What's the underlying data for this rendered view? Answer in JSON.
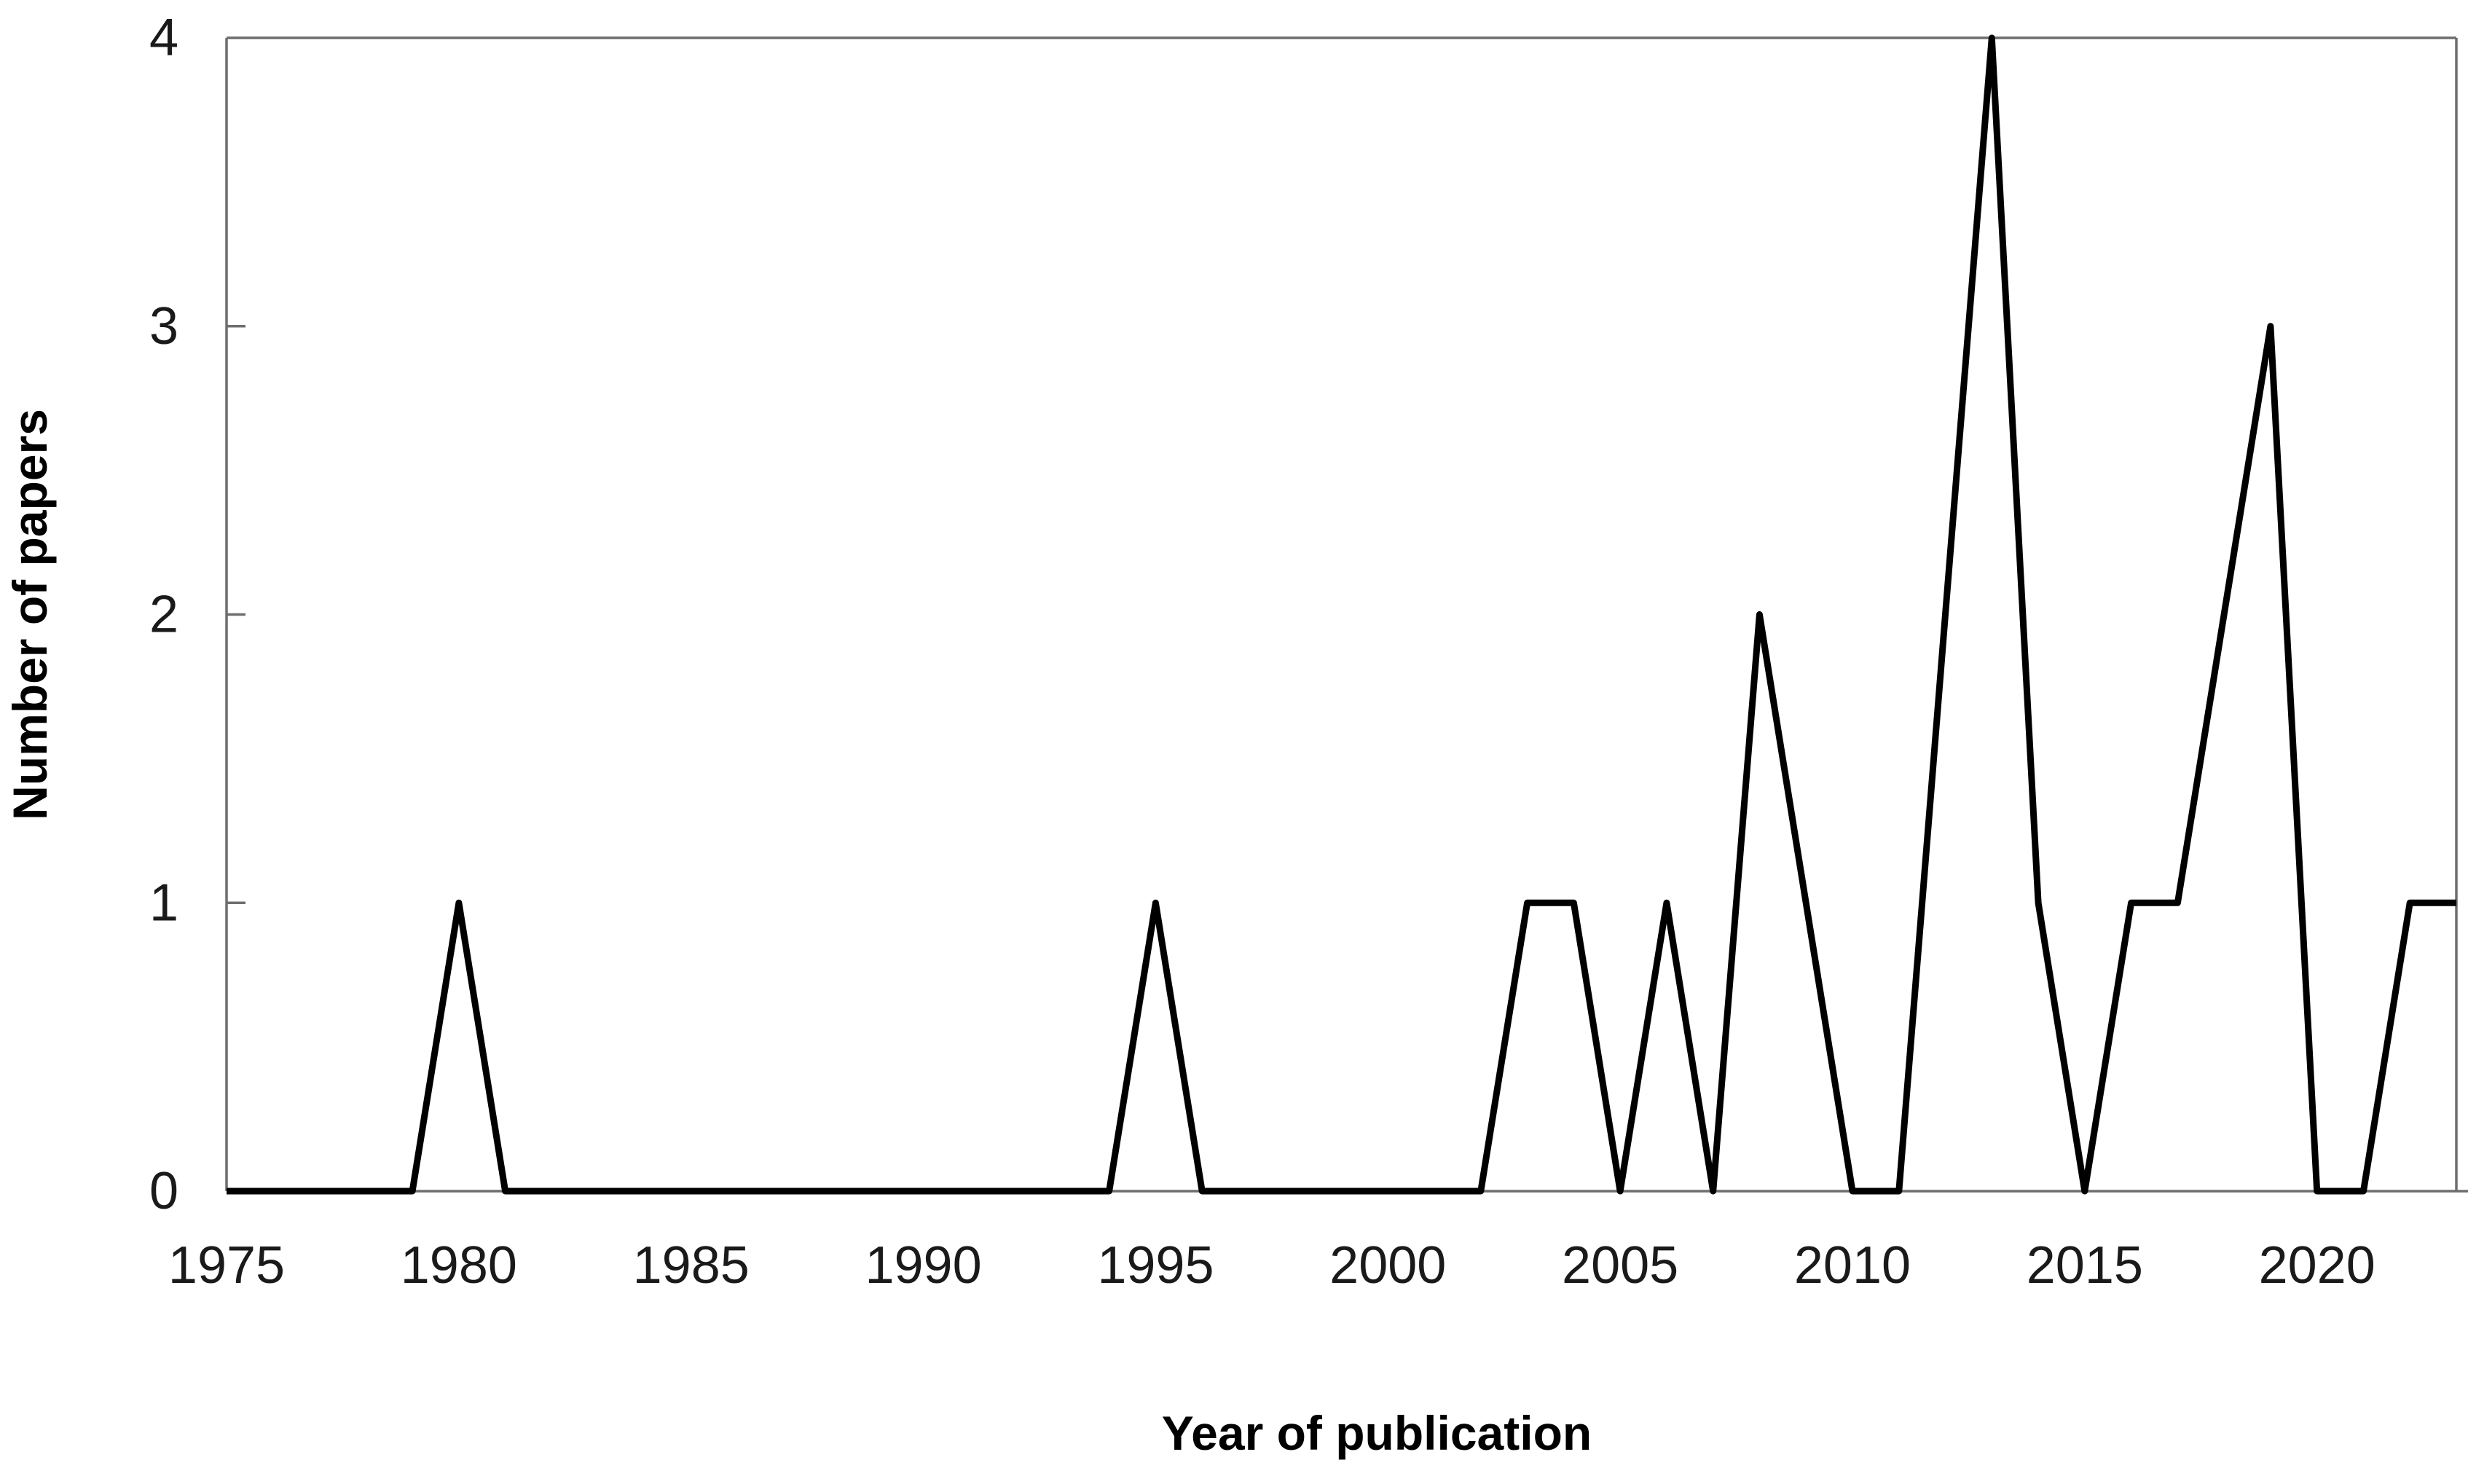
{
  "figure": {
    "background_color": "#ffffff",
    "line_color": "#000000",
    "axis_color": "#6e6e6e",
    "text_color": "#1a1a1a"
  },
  "chart_data": {
    "type": "line",
    "title": "",
    "xlabel": "Year of publication",
    "ylabel": "Number of papers",
    "xlim": [
      1975,
      2023
    ],
    "ylim": [
      0,
      4
    ],
    "grid": false,
    "legend": "none",
    "x_ticks": [
      1975,
      1980,
      1985,
      1990,
      1995,
      2000,
      2005,
      2010,
      2015,
      2020
    ],
    "y_ticks": [
      0,
      1,
      2,
      3,
      4
    ],
    "x": [
      1975,
      1976,
      1977,
      1978,
      1979,
      1980,
      1981,
      1982,
      1983,
      1984,
      1985,
      1986,
      1987,
      1988,
      1989,
      1990,
      1991,
      1992,
      1993,
      1994,
      1995,
      1996,
      1997,
      1998,
      1999,
      2000,
      2001,
      2002,
      2003,
      2004,
      2005,
      2006,
      2007,
      2008,
      2009,
      2010,
      2011,
      2012,
      2013,
      2014,
      2015,
      2016,
      2017,
      2018,
      2019,
      2020,
      2021,
      2022,
      2023
    ],
    "series": [
      {
        "name": "Number of papers",
        "values": [
          0,
          0,
          0,
          0,
          0,
          1,
          0,
          0,
          0,
          0,
          0,
          0,
          0,
          0,
          0,
          0,
          0,
          0,
          0,
          0,
          1,
          0,
          0,
          0,
          0,
          0,
          0,
          0,
          1,
          1,
          0,
          1,
          0,
          2,
          1,
          0,
          0,
          2,
          4,
          1,
          0,
          1,
          1,
          2,
          3,
          0,
          0,
          1,
          1
        ]
      }
    ]
  }
}
